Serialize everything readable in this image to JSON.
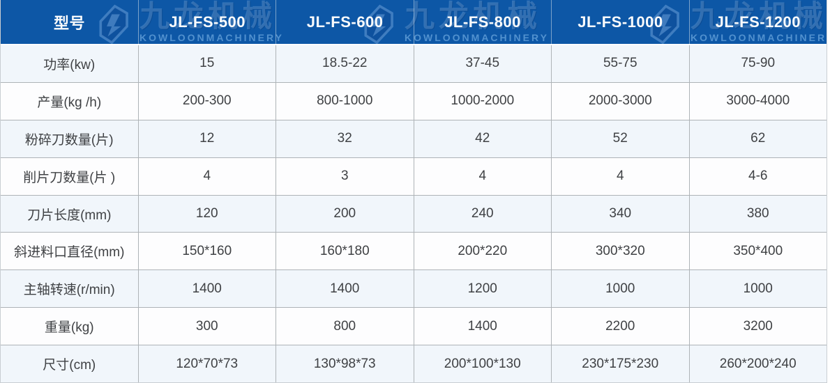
{
  "header": {
    "columns": [
      "型号",
      "JL-FS-500",
      "JL-FS-600",
      "JL-FS-800",
      "JL-FS-1000",
      "JL-FS-1200"
    ],
    "watermark": {
      "logo": "kowloon-machinery-logo",
      "cn": "九龙机械",
      "en": "KOWLOONMACHINERY"
    }
  },
  "table": {
    "rows": [
      {
        "label": "功率(kw)",
        "values": [
          "15",
          "18.5-22",
          "37-45",
          "55-75",
          "75-90"
        ]
      },
      {
        "label": "产量(kg /h)",
        "values": [
          "200-300",
          "800-1000",
          "1000-2000",
          "2000-3000",
          "3000-4000"
        ]
      },
      {
        "label": "粉碎刀数量(片)",
        "values": [
          "12",
          "32",
          "42",
          "52",
          "62"
        ]
      },
      {
        "label": "削片刀数量(片 )",
        "values": [
          "4",
          "3",
          "4",
          "4",
          "4-6"
        ]
      },
      {
        "label": "刀片长度(mm)",
        "values": [
          "120",
          "200",
          "240",
          "340",
          "380"
        ]
      },
      {
        "label": "斜进料口直径(mm)",
        "values": [
          "150*160",
          "160*180",
          "200*220",
          "300*320",
          "350*400"
        ]
      },
      {
        "label": "主轴转速(r/min)",
        "values": [
          "1400",
          "1400",
          "1200",
          "1000",
          "1000"
        ]
      },
      {
        "label": "重量(kg)",
        "values": [
          "300",
          "800",
          "1400",
          "2200",
          "3200"
        ]
      },
      {
        "label": "尺寸(cm)",
        "values": [
          "120*70*73",
          "130*98*73",
          "200*100*130",
          "230*175*230",
          "260*200*240"
        ]
      }
    ]
  },
  "chart_data": {
    "type": "table",
    "title": "",
    "columns": [
      "型号",
      "JL-FS-500",
      "JL-FS-600",
      "JL-FS-800",
      "JL-FS-1000",
      "JL-FS-1200"
    ],
    "rows": [
      [
        "功率(kw)",
        "15",
        "18.5-22",
        "37-45",
        "55-75",
        "75-90"
      ],
      [
        "产量(kg /h)",
        "200-300",
        "800-1000",
        "1000-2000",
        "2000-3000",
        "3000-4000"
      ],
      [
        "粉碎刀数量(片)",
        "12",
        "32",
        "42",
        "52",
        "62"
      ],
      [
        "削片刀数量(片 )",
        "4",
        "3",
        "4",
        "4",
        "4-6"
      ],
      [
        "刀片长度(mm)",
        "120",
        "200",
        "240",
        "340",
        "380"
      ],
      [
        "斜进料口直径(mm)",
        "150*160",
        "160*180",
        "200*220",
        "300*320",
        "350*400"
      ],
      [
        "主轴转速(r/min)",
        "1400",
        "1400",
        "1200",
        "1000",
        "1000"
      ],
      [
        "重量(kg)",
        "300",
        "800",
        "1400",
        "2200",
        "3200"
      ],
      [
        "尺寸(cm)",
        "120*70*73",
        "130*98*73",
        "200*100*130",
        "230*175*230",
        "260*200*240"
      ]
    ]
  },
  "colors": {
    "header_bg": "#0d57a6",
    "row_alt_bg": "#f1f6fb",
    "row_bg": "#fdfdfe",
    "grid_line": "#aeb3b7",
    "body_text": "#3f4144",
    "header_text": "#fafbfc"
  }
}
